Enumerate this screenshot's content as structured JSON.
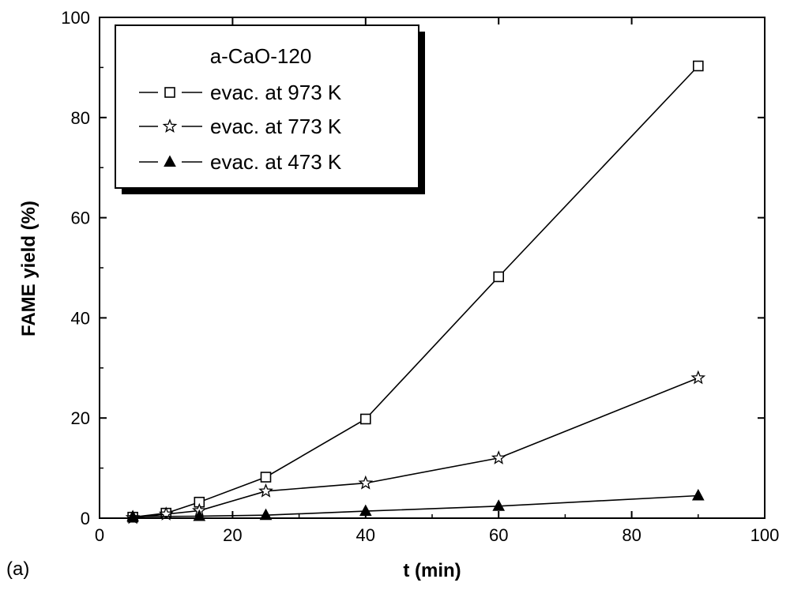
{
  "chart_data": {
    "type": "line",
    "panel_label": "(a)",
    "xlabel": "t (min)",
    "ylabel": "FAME yield (%)",
    "xlim": [
      0,
      100
    ],
    "ylim": [
      0,
      100
    ],
    "xticks": [
      0,
      20,
      40,
      60,
      80,
      100
    ],
    "yticks": [
      0,
      20,
      40,
      60,
      80,
      100
    ],
    "grid": false,
    "legend": {
      "title": "a-CaO-120",
      "placement": "top-left",
      "shadow": true
    },
    "series": [
      {
        "name": "evac. at 973 K",
        "marker": "open-square",
        "x": [
          5,
          10,
          15,
          25,
          40,
          60,
          90
        ],
        "y": [
          0.2,
          1.0,
          3.2,
          8.2,
          19.8,
          48.2,
          90.3
        ]
      },
      {
        "name": "evac. at 773 K",
        "marker": "open-star",
        "x": [
          5,
          10,
          15,
          25,
          40,
          60,
          90
        ],
        "y": [
          0.1,
          0.8,
          1.5,
          5.4,
          7.0,
          12.0,
          28.0
        ]
      },
      {
        "name": "evac. at 473 K",
        "marker": "filled-triangle",
        "x": [
          5,
          15,
          25,
          40,
          60,
          90
        ],
        "y": [
          0.3,
          0.4,
          0.6,
          1.4,
          2.4,
          4.5
        ]
      }
    ]
  }
}
